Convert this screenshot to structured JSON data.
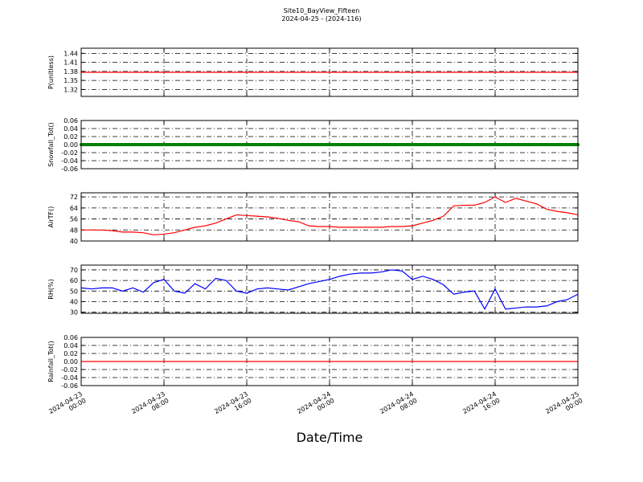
{
  "chart_data": {
    "type": "line",
    "title": "Site10_BayView_Fifteen",
    "subtitle": "2024-04-25 - (2024-116)",
    "xlabel": "Date/Time",
    "grid": true,
    "xlim": [
      "2024-04-23 00:00",
      "2024-04-25 00:00"
    ],
    "xticks": [
      "2024-04-23 00:00",
      "2024-04-23 08:00",
      "2024-04-23 16:00",
      "2024-04-24 00:00",
      "2024-04-24 08:00",
      "2024-04-24 16:00",
      "2024-04-25 00:00"
    ],
    "x": [
      "2024-04-23 00:00",
      "2024-04-23 01:00",
      "2024-04-23 02:00",
      "2024-04-23 03:00",
      "2024-04-23 04:00",
      "2024-04-23 05:00",
      "2024-04-23 06:00",
      "2024-04-23 07:00",
      "2024-04-23 08:00",
      "2024-04-23 09:00",
      "2024-04-23 10:00",
      "2024-04-23 11:00",
      "2024-04-23 12:00",
      "2024-04-23 13:00",
      "2024-04-23 14:00",
      "2024-04-23 15:00",
      "2024-04-23 16:00",
      "2024-04-23 17:00",
      "2024-04-23 18:00",
      "2024-04-23 19:00",
      "2024-04-23 20:00",
      "2024-04-23 21:00",
      "2024-04-23 22:00",
      "2024-04-23 23:00",
      "2024-04-24 00:00",
      "2024-04-24 01:00",
      "2024-04-24 02:00",
      "2024-04-24 03:00",
      "2024-04-24 04:00",
      "2024-04-24 05:00",
      "2024-04-24 06:00",
      "2024-04-24 07:00",
      "2024-04-24 08:00",
      "2024-04-24 09:00",
      "2024-04-24 10:00",
      "2024-04-24 11:00",
      "2024-04-24 12:00",
      "2024-04-24 13:00",
      "2024-04-24 14:00",
      "2024-04-24 15:00",
      "2024-04-24 16:00",
      "2024-04-24 17:00",
      "2024-04-24 18:00",
      "2024-04-24 19:00",
      "2024-04-24 20:00",
      "2024-04-24 21:00",
      "2024-04-24 22:00",
      "2024-04-24 23:00",
      "2024-04-25 00:00"
    ],
    "panels": [
      {
        "ylabel": "P(unitless)",
        "ylim": [
          1.297,
          1.457
        ],
        "yticks": [
          1.32,
          1.35,
          1.38,
          1.41,
          1.44
        ],
        "series": [
          {
            "color": "#ff0000",
            "values": [
              1.377,
              1.377,
              1.377,
              1.377,
              1.377,
              1.377,
              1.377,
              1.377,
              1.377,
              1.377,
              1.377,
              1.377,
              1.377,
              1.377,
              1.377,
              1.377,
              1.377,
              1.377,
              1.377,
              1.377,
              1.377,
              1.377,
              1.377,
              1.377,
              1.377,
              1.377,
              1.377,
              1.377,
              1.377,
              1.377,
              1.377,
              1.377,
              1.377,
              1.377,
              1.377,
              1.377,
              1.377,
              1.377,
              1.377,
              1.377,
              1.377,
              1.377,
              1.377,
              1.377,
              1.377,
              1.377,
              1.377,
              1.377,
              1.377
            ]
          }
        ]
      },
      {
        "ylabel": "Snowfall_Tot()",
        "ylim": [
          -0.06,
          0.06
        ],
        "yticks": [
          -0.06,
          -0.04,
          -0.02,
          {
            "value": 0,
            "label": "0.00"
          },
          0.02,
          0.04,
          0.06
        ],
        "series": [
          {
            "color": "#008000",
            "marker": true,
            "values": [
              0,
              0,
              0,
              0,
              0,
              0,
              0,
              0,
              0,
              0,
              0,
              0,
              0,
              0,
              0,
              0,
              0,
              0,
              0,
              0,
              0,
              0,
              0,
              0,
              0,
              0,
              0,
              0,
              0,
              0,
              0,
              0,
              0,
              0,
              0,
              0,
              0,
              0,
              0,
              0,
              0,
              0,
              0,
              0,
              0,
              0,
              0,
              0,
              0
            ]
          }
        ]
      },
      {
        "ylabel": "AirTF()",
        "ylim": [
          40,
          75
        ],
        "yticks": [
          40,
          48,
          56,
          64,
          72
        ],
        "series": [
          {
            "color": "#ff0000",
            "values": [
              48,
              48,
              48,
              47.5,
              46.5,
              46.5,
              46,
              44.5,
              45,
              46,
              48,
              50,
              51,
              53,
              56,
              59,
              58.5,
              58,
              57.5,
              56.5,
              55,
              54,
              51,
              50.5,
              50.5,
              50,
              50,
              50,
              50,
              50,
              50.5,
              50.5,
              51,
              53,
              55,
              58,
              65.5,
              66,
              66,
              68,
              72,
              68,
              71,
              69,
              67,
              63,
              61.5,
              60.5,
              59
            ]
          }
        ]
      },
      {
        "ylabel": "RH(%)",
        "ylim": [
          29,
          74.5
        ],
        "yticks": [
          30,
          40,
          50,
          60,
          70
        ],
        "series": [
          {
            "color": "#0000ff",
            "values": [
              53,
              52,
              53,
              53,
              50,
              53,
              49,
              58,
              61,
              50,
              48,
              57,
              52,
              62,
              60,
              50,
              48,
              52,
              53,
              52,
              51,
              54,
              57,
              59,
              61,
              64,
              66,
              67,
              67,
              68,
              70,
              69,
              61,
              64,
              61,
              56,
              47,
              49,
              50,
              33,
              52,
              33,
              34,
              35,
              35,
              36,
              40,
              42,
              47
            ]
          }
        ]
      },
      {
        "ylabel": "Rainfall_Tot()",
        "ylim": [
          -0.06,
          0.06
        ],
        "yticks": [
          -0.06,
          -0.04,
          -0.02,
          {
            "value": 0,
            "label": "0.00"
          },
          0.02,
          0.04,
          0.06
        ],
        "series": [
          {
            "color": "#ff0000",
            "values": [
              0,
              0,
              0,
              0,
              0,
              0,
              0,
              0,
              0,
              0,
              0,
              0,
              0,
              0,
              0,
              0,
              0,
              0,
              0,
              0,
              0,
              0,
              0,
              0,
              0,
              0,
              0,
              0,
              0,
              0,
              0,
              0,
              0,
              0,
              0,
              0,
              0,
              0,
              0,
              0,
              0,
              0,
              0,
              0,
              0,
              0,
              0,
              0,
              0
            ]
          }
        ]
      }
    ]
  }
}
